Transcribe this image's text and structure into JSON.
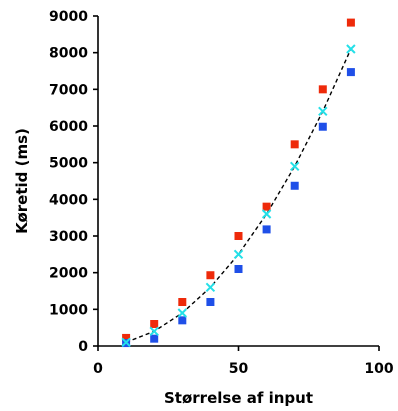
{
  "chart_data": {
    "type": "scatter",
    "xlabel": "Størrelse af input",
    "ylabel": "Køretid (ms)",
    "xlim": [
      0,
      100
    ],
    "ylim": [
      0,
      9000
    ],
    "xticks": [
      0,
      50,
      100
    ],
    "yticks": [
      0,
      1000,
      2000,
      3000,
      4000,
      5000,
      6000,
      7000,
      8000,
      9000
    ],
    "grid": false,
    "legend": "none",
    "series": [
      {
        "marker": "square",
        "color": "#ee2a0a",
        "points": [
          {
            "x": 10,
            "y": 220
          },
          {
            "x": 20,
            "y": 600
          },
          {
            "x": 30,
            "y": 1200
          },
          {
            "x": 40,
            "y": 1930
          },
          {
            "x": 50,
            "y": 3000
          },
          {
            "x": 60,
            "y": 3800
          },
          {
            "x": 70,
            "y": 5500
          },
          {
            "x": 80,
            "y": 7000
          },
          {
            "x": 90,
            "y": 8820
          }
        ]
      },
      {
        "marker": "square",
        "color": "#1f4fe8",
        "points": [
          {
            "x": 10,
            "y": 80
          },
          {
            "x": 20,
            "y": 200
          },
          {
            "x": 30,
            "y": 700
          },
          {
            "x": 40,
            "y": 1200
          },
          {
            "x": 50,
            "y": 2100
          },
          {
            "x": 60,
            "y": 3180
          },
          {
            "x": 70,
            "y": 4370
          },
          {
            "x": 80,
            "y": 5980
          },
          {
            "x": 90,
            "y": 7470
          }
        ]
      },
      {
        "marker": "x",
        "color": "#24e0e8",
        "points": [
          {
            "x": 10,
            "y": 100
          },
          {
            "x": 20,
            "y": 400
          },
          {
            "x": 30,
            "y": 900
          },
          {
            "x": 40,
            "y": 1600
          },
          {
            "x": 50,
            "y": 2500
          },
          {
            "x": 60,
            "y": 3600
          },
          {
            "x": 70,
            "y": 4900
          },
          {
            "x": 80,
            "y": 6400
          },
          {
            "x": 90,
            "y": 8100
          }
        ]
      }
    ],
    "trendline": {
      "style": "dashed",
      "color": "#000000",
      "points": [
        {
          "x": 10,
          "y": 100
        },
        {
          "x": 20,
          "y": 400
        },
        {
          "x": 30,
          "y": 900
        },
        {
          "x": 40,
          "y": 1600
        },
        {
          "x": 50,
          "y": 2500
        },
        {
          "x": 60,
          "y": 3600
        },
        {
          "x": 70,
          "y": 4900
        },
        {
          "x": 80,
          "y": 6400
        },
        {
          "x": 90,
          "y": 8100
        }
      ]
    }
  }
}
